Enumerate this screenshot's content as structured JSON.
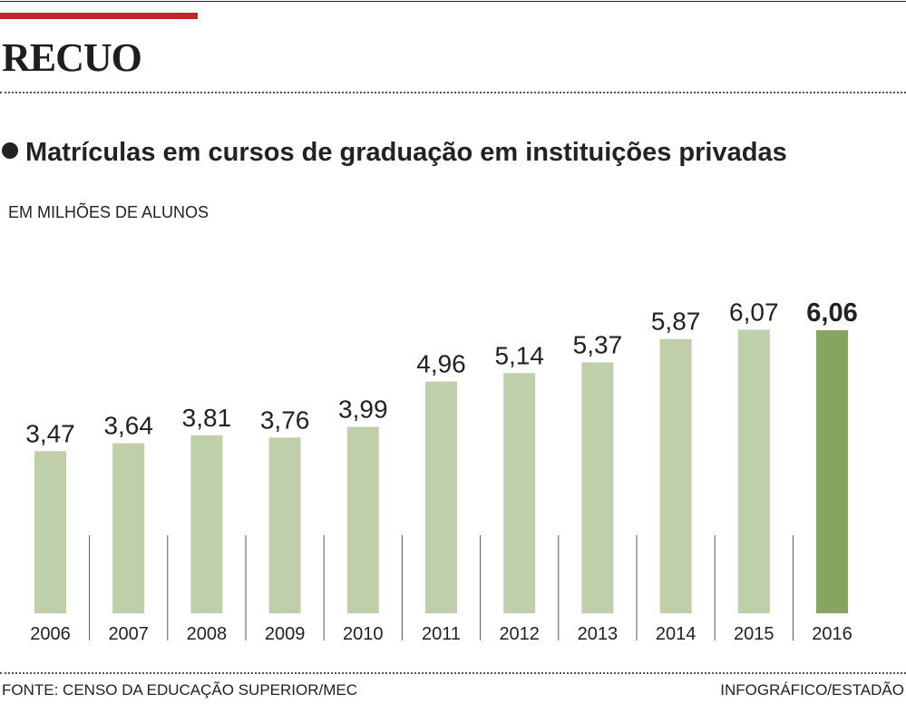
{
  "header": {
    "title": "RECUO"
  },
  "chart_data": {
    "type": "bar",
    "title": "Matrículas em cursos de graduação em instituições privadas",
    "ylabel": "EM MILHÕES DE ALUNOS",
    "categories": [
      "2006",
      "2007",
      "2008",
      "2009",
      "2010",
      "2011",
      "2012",
      "2013",
      "2014",
      "2015",
      "2016"
    ],
    "values": [
      3.47,
      3.64,
      3.81,
      3.76,
      3.99,
      4.96,
      5.14,
      5.37,
      5.87,
      6.07,
      6.06
    ],
    "value_labels": [
      "3,47",
      "3,64",
      "3,81",
      "3,76",
      "3,99",
      "4,96",
      "5,14",
      "5,37",
      "5,87",
      "6,07",
      "6,06"
    ],
    "highlight_index": 10,
    "colors": {
      "bar": "#bfcfa9",
      "highlight": "#87a461"
    },
    "ylim": [
      0,
      6.5
    ],
    "grid": false
  },
  "footer": {
    "source": "FONTE: CENSO DA EDUCAÇÃO SUPERIOR/MEC",
    "credit": "INFOGRÁFICO/ESTADÃO"
  }
}
